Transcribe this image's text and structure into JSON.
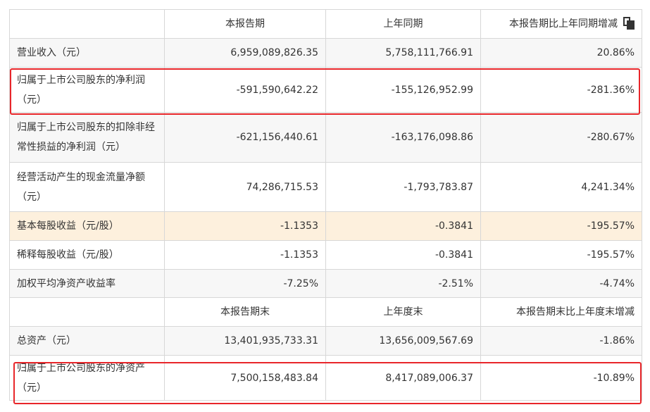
{
  "header1": [
    "本报告期",
    "上年同期",
    "本报告期比上年同期增减"
  ],
  "header2": [
    "本报告期末",
    "上年度末",
    "本报告期末比上年度末增减"
  ],
  "rows": [
    {
      "label": "营业收入（元）",
      "v1": "6,959,089,826.35",
      "v2": "5,758,111,766.91",
      "v3": "20.86%"
    },
    {
      "label": "归属于上市公司股东的净利润（元）",
      "v1": "-591,590,642.22",
      "v2": "-155,126,952.99",
      "v3": "-281.36%"
    },
    {
      "label": "归属于上市公司股东的扣除非经常性损益的净利润（元）",
      "v1": "-621,156,440.61",
      "v2": "-163,176,098.86",
      "v3": "-280.67%"
    },
    {
      "label": "经营活动产生的现金流量净额（元）",
      "v1": "74,286,715.53",
      "v2": "-1,793,783.87",
      "v3": "4,241.34%"
    },
    {
      "label": "基本每股收益（元/股）",
      "v1": "-1.1353",
      "v2": "-0.3841",
      "v3": "-195.57%"
    },
    {
      "label": "稀释每股收益（元/股）",
      "v1": "-1.1353",
      "v2": "-0.3841",
      "v3": "-195.57%"
    },
    {
      "label": "加权平均净资产收益率",
      "v1": "-7.25%",
      "v2": "-2.51%",
      "v3": "-4.74%"
    },
    {
      "label": "总资产（元）",
      "v1": "13,401,935,733.31",
      "v2": "13,656,009,567.69",
      "v3": "-1.86%"
    },
    {
      "label": "归属于上市公司股东的净资产（元）",
      "v1": "7,500,158,483.84",
      "v2": "8,417,089,006.37",
      "v3": "-10.89%"
    }
  ],
  "colors": {
    "highlight_row": "#fdf0dd",
    "alt_row": "#f7f7f7",
    "border": "#d7d7d7",
    "annotation_box": "#e8262a"
  },
  "icons": {
    "copy": "copy-icon"
  }
}
